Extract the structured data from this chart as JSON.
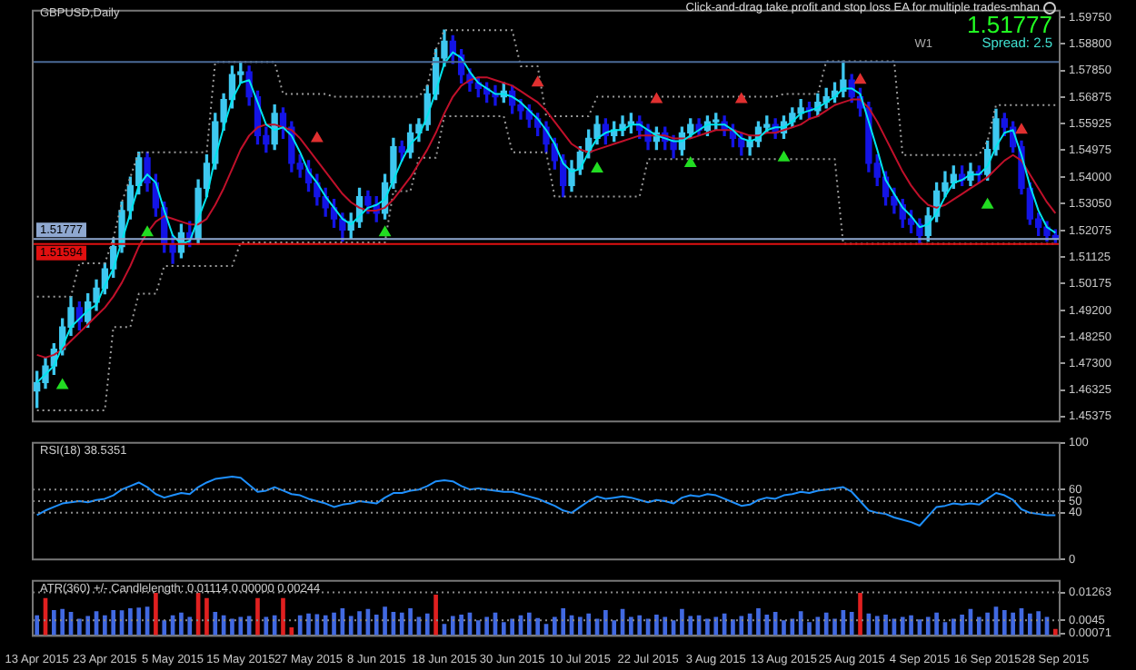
{
  "chart_data": [
    {
      "type": "candlestick",
      "title": "GBPUSD,Daily",
      "tick_labels": "y",
      "ohlc": [
        [
          1.463,
          1.47,
          1.457,
          1.466
        ],
        [
          1.466,
          1.475,
          1.464,
          1.472
        ],
        [
          1.472,
          1.48,
          1.469,
          1.478
        ],
        [
          1.478,
          1.489,
          1.476,
          1.486
        ],
        [
          1.486,
          1.497,
          1.483,
          1.493
        ],
        [
          1.493,
          1.495,
          1.485,
          1.488
        ],
        [
          1.488,
          1.498,
          1.486,
          1.495
        ],
        [
          1.495,
          1.503,
          1.492,
          1.5
        ],
        [
          1.5,
          1.509,
          1.498,
          1.507
        ],
        [
          1.507,
          1.518,
          1.504,
          1.515
        ],
        [
          1.515,
          1.531,
          1.513,
          1.528
        ],
        [
          1.528,
          1.54,
          1.525,
          1.537
        ],
        [
          1.537,
          1.549,
          1.534,
          1.547
        ],
        [
          1.547,
          1.549,
          1.535,
          1.538
        ],
        [
          1.538,
          1.541,
          1.526,
          1.529
        ],
        [
          1.529,
          1.531,
          1.513,
          1.516
        ],
        [
          1.516,
          1.519,
          1.509,
          1.513
        ],
        [
          1.513,
          1.523,
          1.511,
          1.52
        ],
        [
          1.52,
          1.524,
          1.515,
          1.518
        ],
        [
          1.518,
          1.539,
          1.516,
          1.536
        ],
        [
          1.536,
          1.548,
          1.533,
          1.545
        ],
        [
          1.545,
          1.563,
          1.543,
          1.56
        ],
        [
          1.56,
          1.57,
          1.557,
          1.568
        ],
        [
          1.568,
          1.58,
          1.565,
          1.577
        ],
        [
          1.577,
          1.5815,
          1.574,
          1.578
        ],
        [
          1.578,
          1.58,
          1.566,
          1.569
        ],
        [
          1.569,
          1.571,
          1.552,
          1.555
        ],
        [
          1.555,
          1.558,
          1.549,
          1.552
        ],
        [
          1.552,
          1.566,
          1.55,
          1.563
        ],
        [
          1.563,
          1.565,
          1.554,
          1.558
        ],
        [
          1.558,
          1.56,
          1.542,
          1.545
        ],
        [
          1.545,
          1.548,
          1.54,
          1.543
        ],
        [
          1.543,
          1.546,
          1.535,
          1.538
        ],
        [
          1.538,
          1.541,
          1.53,
          1.533
        ],
        [
          1.533,
          1.536,
          1.526,
          1.529
        ],
        [
          1.529,
          1.532,
          1.522,
          1.525
        ],
        [
          1.525,
          1.527,
          1.517,
          1.521
        ],
        [
          1.521,
          1.527,
          1.518,
          1.524
        ],
        [
          1.524,
          1.536,
          1.522,
          1.533
        ],
        [
          1.533,
          1.535,
          1.527,
          1.53
        ],
        [
          1.53,
          1.533,
          1.524,
          1.527
        ],
        [
          1.527,
          1.541,
          1.525,
          1.538
        ],
        [
          1.538,
          1.554,
          1.536,
          1.551
        ],
        [
          1.551,
          1.553,
          1.546,
          1.549
        ],
        [
          1.549,
          1.559,
          1.547,
          1.556
        ],
        [
          1.556,
          1.561,
          1.553,
          1.559
        ],
        [
          1.559,
          1.573,
          1.557,
          1.57
        ],
        [
          1.57,
          1.586,
          1.568,
          1.583
        ],
        [
          1.583,
          1.593,
          1.58,
          1.589
        ],
        [
          1.589,
          1.591,
          1.581,
          1.584
        ],
        [
          1.584,
          1.586,
          1.574,
          1.577
        ],
        [
          1.577,
          1.579,
          1.571,
          1.574
        ],
        [
          1.574,
          1.576,
          1.569,
          1.572
        ],
        [
          1.572,
          1.574,
          1.567,
          1.57
        ],
        [
          1.57,
          1.573,
          1.566,
          1.569
        ],
        [
          1.569,
          1.574,
          1.567,
          1.571
        ],
        [
          1.571,
          1.573,
          1.563,
          1.566
        ],
        [
          1.566,
          1.568,
          1.561,
          1.564
        ],
        [
          1.564,
          1.566,
          1.558,
          1.561
        ],
        [
          1.561,
          1.563,
          1.555,
          1.558
        ],
        [
          1.558,
          1.56,
          1.549,
          1.552
        ],
        [
          1.552,
          1.554,
          1.543,
          1.546
        ],
        [
          1.546,
          1.548,
          1.533,
          1.537
        ],
        [
          1.537,
          1.546,
          1.535,
          1.543
        ],
        [
          1.543,
          1.551,
          1.541,
          1.549
        ],
        [
          1.549,
          1.557,
          1.547,
          1.554
        ],
        [
          1.554,
          1.562,
          1.552,
          1.559
        ],
        [
          1.559,
          1.561,
          1.552,
          1.555
        ],
        [
          1.555,
          1.56,
          1.553,
          1.557
        ],
        [
          1.557,
          1.562,
          1.555,
          1.559
        ],
        [
          1.559,
          1.563,
          1.556,
          1.56
        ],
        [
          1.56,
          1.562,
          1.554,
          1.557
        ],
        [
          1.557,
          1.559,
          1.55,
          1.553
        ],
        [
          1.553,
          1.558,
          1.55,
          1.556
        ],
        [
          1.556,
          1.558,
          1.55,
          1.553
        ],
        [
          1.553,
          1.555,
          1.547,
          1.55
        ],
        [
          1.55,
          1.558,
          1.548,
          1.556
        ],
        [
          1.556,
          1.561,
          1.554,
          1.559
        ],
        [
          1.559,
          1.561,
          1.555,
          1.557
        ],
        [
          1.557,
          1.562,
          1.555,
          1.56
        ],
        [
          1.56,
          1.563,
          1.557,
          1.56
        ],
        [
          1.56,
          1.562,
          1.555,
          1.557
        ],
        [
          1.557,
          1.559,
          1.551,
          1.554
        ],
        [
          1.554,
          1.556,
          1.548,
          1.551
        ],
        [
          1.551,
          1.555,
          1.548,
          1.553
        ],
        [
          1.553,
          1.56,
          1.551,
          1.558
        ],
        [
          1.558,
          1.562,
          1.556,
          1.559
        ],
        [
          1.559,
          1.561,
          1.554,
          1.556
        ],
        [
          1.556,
          1.562,
          1.554,
          1.56
        ],
        [
          1.56,
          1.565,
          1.558,
          1.563
        ],
        [
          1.563,
          1.568,
          1.561,
          1.565
        ],
        [
          1.565,
          1.567,
          1.561,
          1.564
        ],
        [
          1.564,
          1.57,
          1.562,
          1.567
        ],
        [
          1.567,
          1.572,
          1.565,
          1.569
        ],
        [
          1.569,
          1.574,
          1.567,
          1.571
        ],
        [
          1.571,
          1.5818,
          1.569,
          1.575
        ],
        [
          1.575,
          1.577,
          1.567,
          1.569
        ],
        [
          1.569,
          1.572,
          1.562,
          1.565
        ],
        [
          1.565,
          1.567,
          1.542,
          1.545
        ],
        [
          1.545,
          1.548,
          1.537,
          1.54
        ],
        [
          1.54,
          1.542,
          1.53,
          1.533
        ],
        [
          1.533,
          1.536,
          1.527,
          1.53
        ],
        [
          1.53,
          1.532,
          1.522,
          1.525
        ],
        [
          1.525,
          1.528,
          1.52,
          1.523
        ],
        [
          1.523,
          1.525,
          1.516,
          1.519
        ],
        [
          1.519,
          1.529,
          1.517,
          1.526
        ],
        [
          1.526,
          1.538,
          1.524,
          1.535
        ],
        [
          1.535,
          1.542,
          1.533,
          1.538
        ],
        [
          1.538,
          1.544,
          1.536,
          1.541
        ],
        [
          1.541,
          1.544,
          1.537,
          1.539
        ],
        [
          1.539,
          1.545,
          1.537,
          1.542
        ],
        [
          1.542,
          1.544,
          1.538,
          1.541
        ],
        [
          1.541,
          1.553,
          1.539,
          1.55
        ],
        [
          1.55,
          1.5645,
          1.548,
          1.561
        ],
        [
          1.561,
          1.563,
          1.555,
          1.558
        ],
        [
          1.558,
          1.56,
          1.549,
          1.551
        ],
        [
          1.551,
          1.553,
          1.534,
          1.536
        ],
        [
          1.536,
          1.538,
          1.523,
          1.525
        ],
        [
          1.525,
          1.527,
          1.519,
          1.522
        ],
        [
          1.522,
          1.524,
          1.517,
          1.519
        ],
        [
          1.519,
          1.521,
          1.5165,
          1.5178
        ]
      ],
      "colors": [
        "#3ec8f0",
        "#3ec8f0",
        "#3ec8f0",
        "#3ec8f0",
        "#3ec8f0",
        "#1414e6",
        "#3ec8f0",
        "#3ec8f0",
        "#3ec8f0",
        "#3ec8f0",
        "#3ec8f0",
        "#3ec8f0",
        "#3ec8f0",
        "#1414e6",
        "#1414e6",
        "#1414e6",
        "#1414e6",
        "#3ec8f0",
        "#1414e6",
        "#3ec8f0",
        "#3ec8f0",
        "#3ec8f0",
        "#3ec8f0",
        "#3ec8f0",
        "#3ec8f0",
        "#1414e6",
        "#1414e6",
        "#1414e6",
        "#3ec8f0",
        "#1414e6",
        "#1414e6",
        "#1414e6",
        "#1414e6",
        "#1414e6",
        "#1414e6",
        "#1414e6",
        "#1414e6",
        "#3ec8f0",
        "#3ec8f0",
        "#1414e6",
        "#1414e6",
        "#3ec8f0",
        "#3ec8f0",
        "#1414e6",
        "#3ec8f0",
        "#3ec8f0",
        "#3ec8f0",
        "#3ec8f0",
        "#3ec8f0",
        "#1414e6",
        "#1414e6",
        "#1414e6",
        "#1414e6",
        "#1414e6",
        "#1414e6",
        "#3ec8f0",
        "#1414e6",
        "#1414e6",
        "#1414e6",
        "#1414e6",
        "#1414e6",
        "#1414e6",
        "#1414e6",
        "#3ec8f0",
        "#3ec8f0",
        "#3ec8f0",
        "#3ec8f0",
        "#1414e6",
        "#3ec8f0",
        "#3ec8f0",
        "#3ec8f0",
        "#1414e6",
        "#1414e6",
        "#3ec8f0",
        "#1414e6",
        "#1414e6",
        "#3ec8f0",
        "#3ec8f0",
        "#1414e6",
        "#3ec8f0",
        "#3ec8f0",
        "#1414e6",
        "#1414e6",
        "#1414e6",
        "#3ec8f0",
        "#3ec8f0",
        "#3ec8f0",
        "#1414e6",
        "#3ec8f0",
        "#3ec8f0",
        "#3ec8f0",
        "#1414e6",
        "#3ec8f0",
        "#3ec8f0",
        "#3ec8f0",
        "#3ec8f0",
        "#1414e6",
        "#1414e6",
        "#1414e6",
        "#1414e6",
        "#1414e6",
        "#1414e6",
        "#1414e6",
        "#1414e6",
        "#1414e6",
        "#3ec8f0",
        "#3ec8f0",
        "#3ec8f0",
        "#3ec8f0",
        "#1414e6",
        "#3ec8f0",
        "#1414e6",
        "#3ec8f0",
        "#3ec8f0",
        "#1414e6",
        "#1414e6",
        "#1414e6",
        "#1414e6",
        "#1414e6",
        "#1414e6",
        "#1414e6"
      ],
      "series": [
        {
          "type": "line",
          "color": "#00e5ee",
          "values": [
            1.466,
            1.469,
            1.472,
            1.479,
            1.486,
            1.489,
            1.492,
            1.494,
            1.501,
            1.507,
            1.517,
            1.527,
            1.537,
            1.541,
            1.538,
            1.528,
            1.519,
            1.516,
            1.517,
            1.525,
            1.533,
            1.547,
            1.558,
            1.568,
            1.574,
            1.575,
            1.567,
            1.559,
            1.557,
            1.558,
            1.555,
            1.549,
            1.542,
            1.538,
            1.533,
            1.529,
            1.525,
            1.523,
            1.526,
            1.529,
            1.53,
            1.532,
            1.539,
            1.546,
            1.552,
            1.555,
            1.562,
            1.571,
            1.581,
            1.585,
            1.583,
            1.578,
            1.574,
            1.572,
            1.57,
            1.57,
            1.569,
            1.567,
            1.564,
            1.561,
            1.557,
            1.552,
            1.545,
            1.542,
            1.543,
            1.549,
            1.554,
            1.556,
            1.557,
            1.557,
            1.559,
            1.559,
            1.557,
            1.555,
            1.554,
            1.553,
            1.553,
            1.555,
            1.557,
            1.559,
            1.559,
            1.559,
            1.557,
            1.554,
            1.553,
            1.554,
            1.557,
            1.558,
            1.558,
            1.56,
            1.563,
            1.564,
            1.565,
            1.567,
            1.569,
            1.572,
            1.572,
            1.57,
            1.56,
            1.55,
            1.539,
            1.534,
            1.529,
            1.526,
            1.522,
            1.523,
            1.527,
            1.533,
            1.538,
            1.539,
            1.541,
            1.541,
            1.544,
            1.551,
            1.556,
            1.557,
            1.548,
            1.537,
            1.528,
            1.522,
            1.52
          ]
        },
        {
          "type": "line",
          "color": "#c0102a",
          "values": [
            1.476,
            1.475,
            1.476,
            1.478,
            1.481,
            1.484,
            1.487,
            1.49,
            1.493,
            1.497,
            1.502,
            1.508,
            1.515,
            1.52,
            1.524,
            1.526,
            1.525,
            1.524,
            1.523,
            1.523,
            1.525,
            1.53,
            1.536,
            1.543,
            1.55,
            1.555,
            1.558,
            1.559,
            1.559,
            1.558,
            1.557,
            1.554,
            1.55,
            1.546,
            1.542,
            1.538,
            1.534,
            1.531,
            1.529,
            1.528,
            1.528,
            1.529,
            1.532,
            1.536,
            1.54,
            1.545,
            1.55,
            1.556,
            1.563,
            1.569,
            1.573,
            1.575,
            1.576,
            1.576,
            1.575,
            1.574,
            1.573,
            1.571,
            1.569,
            1.567,
            1.564,
            1.56,
            1.556,
            1.552,
            1.55,
            1.549,
            1.55,
            1.551,
            1.552,
            1.553,
            1.554,
            1.555,
            1.555,
            1.555,
            1.555,
            1.554,
            1.554,
            1.554,
            1.555,
            1.556,
            1.557,
            1.557,
            1.557,
            1.556,
            1.555,
            1.555,
            1.556,
            1.556,
            1.557,
            1.558,
            1.559,
            1.561,
            1.562,
            1.564,
            1.566,
            1.567,
            1.568,
            1.568,
            1.565,
            1.56,
            1.554,
            1.548,
            1.542,
            1.537,
            1.533,
            1.53,
            1.529,
            1.53,
            1.532,
            1.534,
            1.536,
            1.538,
            1.54,
            1.543,
            1.546,
            1.548,
            1.546,
            1.541,
            1.536,
            1.531,
            1.527
          ]
        },
        {
          "type": "line",
          "color": "#9a9a9a",
          "line_style": "dotted",
          "values": [
            1.497,
            1.497,
            1.497,
            1.497,
            1.497,
            1.509,
            1.509,
            1.509,
            1.509,
            1.518,
            1.531,
            1.54,
            1.549,
            1.549,
            1.549,
            1.549,
            1.549,
            1.549,
            1.549,
            1.549,
            1.549,
            1.5815,
            1.5815,
            1.5815,
            1.5815,
            1.5815,
            1.5815,
            1.5815,
            1.5815,
            1.57,
            1.57,
            1.57,
            1.57,
            1.57,
            1.57,
            1.569,
            1.569,
            1.569,
            1.569,
            1.569,
            1.569,
            1.569,
            1.569,
            1.569,
            1.569,
            1.569,
            1.573,
            1.586,
            1.593,
            1.593,
            1.593,
            1.593,
            1.593,
            1.593,
            1.593,
            1.593,
            1.593,
            1.58,
            1.58,
            1.58,
            1.562,
            1.562,
            1.562,
            1.562,
            1.562,
            1.562,
            1.569,
            1.569,
            1.569,
            1.569,
            1.569,
            1.569,
            1.569,
            1.569,
            1.569,
            1.569,
            1.569,
            1.569,
            1.569,
            1.569,
            1.569,
            1.569,
            1.569,
            1.569,
            1.569,
            1.569,
            1.569,
            1.569,
            1.57,
            1.57,
            1.57,
            1.57,
            1.57,
            1.5818,
            1.5818,
            1.5818,
            1.5818,
            1.5818,
            1.5818,
            1.5818,
            1.5818,
            1.5818,
            1.548,
            1.548,
            1.548,
            1.548,
            1.548,
            1.548,
            1.548,
            1.548,
            1.548,
            1.548,
            1.553,
            1.566,
            1.566,
            1.566,
            1.566,
            1.566,
            1.566,
            1.566,
            1.566
          ]
        },
        {
          "type": "line",
          "color": "#9a9a9a",
          "line_style": "dotted",
          "values": [
            1.456,
            1.456,
            1.456,
            1.456,
            1.456,
            1.456,
            1.456,
            1.456,
            1.456,
            1.486,
            1.486,
            1.486,
            1.498,
            1.498,
            1.498,
            1.508,
            1.508,
            1.508,
            1.508,
            1.508,
            1.508,
            1.508,
            1.508,
            1.508,
            1.5165,
            1.5165,
            1.5165,
            1.5165,
            1.5165,
            1.5165,
            1.5165,
            1.5165,
            1.5165,
            1.5165,
            1.5165,
            1.5165,
            1.5165,
            1.5165,
            1.5165,
            1.5165,
            1.5165,
            1.5165,
            1.535,
            1.535,
            1.535,
            1.547,
            1.547,
            1.547,
            1.562,
            1.562,
            1.562,
            1.562,
            1.562,
            1.562,
            1.562,
            1.562,
            1.549,
            1.549,
            1.549,
            1.549,
            1.549,
            1.533,
            1.533,
            1.533,
            1.533,
            1.533,
            1.533,
            1.533,
            1.533,
            1.533,
            1.533,
            1.533,
            1.5465,
            1.5465,
            1.5465,
            1.5465,
            1.5465,
            1.5465,
            1.5465,
            1.5465,
            1.5465,
            1.5465,
            1.5465,
            1.5465,
            1.5465,
            1.5465,
            1.5465,
            1.5465,
            1.5465,
            1.5465,
            1.5465,
            1.5465,
            1.5465,
            1.5465,
            1.5465,
            1.516,
            1.516,
            1.516,
            1.516,
            1.516,
            1.516,
            1.516,
            1.516,
            1.516,
            1.516,
            1.516,
            1.516,
            1.516,
            1.516,
            1.516,
            1.516,
            1.516,
            1.516,
            1.516,
            1.516,
            1.516,
            1.516,
            1.516,
            1.516,
            1.516,
            1.516
          ]
        },
        {
          "type": "scatter",
          "color": "#22dd22",
          "marker": "triangle",
          "values": [
            null,
            null,
            null,
            1.465,
            null,
            null,
            null,
            null,
            null,
            null,
            null,
            null,
            null,
            1.52,
            null,
            null,
            null,
            null,
            null,
            null,
            null,
            null,
            null,
            null,
            null,
            null,
            null,
            null,
            null,
            null,
            null,
            null,
            null,
            null,
            null,
            null,
            null,
            null,
            null,
            null,
            null,
            1.52,
            null,
            null,
            null,
            null,
            null,
            null,
            null,
            null,
            null,
            null,
            null,
            null,
            null,
            null,
            null,
            null,
            null,
            null,
            null,
            null,
            null,
            null,
            null,
            null,
            1.543,
            null,
            null,
            null,
            null,
            null,
            null,
            null,
            null,
            null,
            null,
            1.545,
            null,
            null,
            null,
            null,
            null,
            null,
            null,
            null,
            null,
            null,
            1.547,
            null,
            null,
            null,
            null,
            null,
            null,
            null,
            null,
            null,
            null,
            null,
            null,
            null,
            null,
            null,
            null,
            null,
            null,
            null,
            null,
            null,
            null,
            null,
            1.53,
            null,
            null,
            null,
            null,
            null,
            null,
            null,
            null
          ]
        },
        {
          "type": "scatter",
          "color": "#e03030",
          "marker": "triangle",
          "values": [
            null,
            null,
            null,
            null,
            null,
            null,
            null,
            null,
            null,
            null,
            null,
            null,
            null,
            null,
            null,
            null,
            null,
            null,
            null,
            null,
            null,
            null,
            null,
            null,
            null,
            null,
            null,
            null,
            null,
            null,
            null,
            null,
            null,
            1.554,
            null,
            null,
            null,
            null,
            null,
            null,
            null,
            null,
            null,
            null,
            null,
            null,
            null,
            null,
            null,
            null,
            null,
            null,
            null,
            null,
            null,
            null,
            null,
            null,
            null,
            1.574,
            null,
            null,
            null,
            null,
            null,
            null,
            null,
            null,
            null,
            null,
            null,
            null,
            null,
            1.568,
            null,
            null,
            null,
            null,
            null,
            null,
            null,
            null,
            null,
            1.568,
            null,
            null,
            null,
            null,
            null,
            null,
            null,
            null,
            null,
            null,
            null,
            null,
            null,
            1.575,
            null,
            null,
            null,
            null,
            null,
            null,
            null,
            null,
            null,
            null,
            null,
            null,
            null,
            null,
            null,
            null,
            null,
            null,
            1.557,
            null,
            null,
            null,
            null
          ]
        }
      ],
      "ylim": [
        1.452,
        1.6
      ],
      "yticks": [
        {
          "value": 1.5975,
          "label": "1.59750"
        },
        {
          "value": 1.588,
          "label": "1.58800"
        },
        {
          "value": 1.5785,
          "label": "1.57850"
        },
        {
          "value": 1.56875,
          "label": "1.56875"
        },
        {
          "value": 1.55925,
          "label": "1.55925"
        },
        {
          "value": 1.54975,
          "label": "1.54975"
        },
        {
          "value": 1.54,
          "label": "1.54000"
        },
        {
          "value": 1.5305,
          "label": "1.53050"
        },
        {
          "value": 1.52075,
          "label": "1.52075"
        },
        {
          "value": 1.51125,
          "label": "1.51125"
        },
        {
          "value": 1.50175,
          "label": "1.50175"
        },
        {
          "value": 1.492,
          "label": "1.49200"
        },
        {
          "value": 1.4825,
          "label": "1.48250"
        },
        {
          "value": 1.473,
          "label": "1.47300"
        },
        {
          "value": 1.46325,
          "label": "1.46325"
        },
        {
          "value": 1.45375,
          "label": "1.45375"
        }
      ],
      "ref_lines": [
        {
          "axis": "y",
          "value": 1.5815,
          "color": "#4a6a96"
        },
        {
          "axis": "y",
          "value": 1.51777,
          "label": "1.51777",
          "color": "#8fa8d0"
        },
        {
          "axis": "y",
          "value": 1.51594,
          "label": "1.51594",
          "color": "#e01010"
        }
      ],
      "annotations": [
        "Click-and-drag take profit and stop loss EA for multiple trades-mhan",
        "1.51777",
        "Spread: 2.5",
        "W1"
      ]
    },
    {
      "type": "line",
      "title": "RSI(18) 38.5351",
      "tick_labels": "y",
      "color": "#1e90ff",
      "values": [
        38,
        42,
        45,
        48,
        49,
        50,
        49,
        51,
        52,
        55,
        60,
        63,
        66,
        62,
        56,
        53,
        55,
        57,
        56,
        62,
        66,
        69,
        70,
        71,
        70,
        64,
        58,
        59,
        62,
        59,
        56,
        55,
        52,
        50,
        48,
        45,
        47,
        48,
        50,
        49,
        48,
        53,
        57,
        57,
        59,
        60,
        63,
        67,
        68,
        67,
        63,
        60,
        61,
        60,
        59,
        58,
        58,
        56,
        54,
        52,
        49,
        46,
        42,
        40,
        45,
        50,
        54,
        52,
        53,
        54,
        53,
        51,
        49,
        51,
        50,
        48,
        53,
        55,
        54,
        56,
        55,
        52,
        49,
        46,
        47,
        51,
        53,
        52,
        55,
        56,
        58,
        57,
        59,
        60,
        61,
        62,
        58,
        50,
        42,
        40,
        39,
        36,
        34,
        32,
        29,
        37,
        45,
        46,
        48,
        47,
        48,
        47,
        52,
        57,
        55,
        51,
        43,
        40,
        39,
        38,
        38
      ],
      "ylim": [
        0,
        100
      ],
      "yticks": [
        0,
        40,
        50,
        60,
        100
      ],
      "ref_lines": [
        {
          "axis": "y",
          "value": 60,
          "color": "#8a8a8a",
          "line_style": "dotted"
        },
        {
          "axis": "y",
          "value": 50,
          "color": "#8a8a8a",
          "line_style": "dotted"
        },
        {
          "axis": "y",
          "value": 40,
          "color": "#8a8a8a",
          "line_style": "dotted"
        }
      ]
    },
    {
      "type": "bar",
      "title": "ATR(360) +/- Candlelength: 0.01114 0.00000 0.00244",
      "categories": [
        "13 Apr 2015",
        null,
        null,
        null,
        null,
        null,
        null,
        null,
        "23 Apr 2015",
        null,
        null,
        null,
        null,
        null,
        null,
        null,
        "5 May 2015",
        null,
        null,
        null,
        null,
        null,
        null,
        null,
        "15 May 2015",
        null,
        null,
        null,
        null,
        null,
        null,
        null,
        "27 May 2015",
        null,
        null,
        null,
        null,
        null,
        null,
        null,
        "8 Jun 2015",
        null,
        null,
        null,
        null,
        null,
        null,
        null,
        "18 Jun 2015",
        null,
        null,
        null,
        null,
        null,
        null,
        null,
        "30 Jun 2015",
        null,
        null,
        null,
        null,
        null,
        null,
        null,
        "10 Jul 2015",
        null,
        null,
        null,
        null,
        null,
        null,
        null,
        "22 Jul 2015",
        null,
        null,
        null,
        null,
        null,
        null,
        null,
        "3 Aug 2015",
        null,
        null,
        null,
        null,
        null,
        null,
        null,
        "13 Aug 2015",
        null,
        null,
        null,
        null,
        null,
        null,
        null,
        "25 Aug 2015",
        null,
        null,
        null,
        null,
        null,
        null,
        null,
        "4 Sep 2015",
        null,
        null,
        null,
        null,
        null,
        null,
        null,
        "16 Sep 2015",
        null,
        null,
        null,
        null,
        null,
        null,
        null,
        "28 Sep 2015"
      ],
      "values": [
        0.006,
        0.011,
        0.0075,
        0.0078,
        0.007,
        0.005,
        0.0058,
        0.0072,
        0.006,
        0.0075,
        0.0074,
        0.008,
        0.0082,
        0.0085,
        0.0125,
        0.0045,
        0.006,
        0.0068,
        0.0055,
        0.0125,
        0.011,
        0.007,
        0.006,
        0.005,
        0.0055,
        0.0058,
        0.011,
        0.0055,
        0.006,
        0.011,
        0.0025,
        0.006,
        0.0065,
        0.0063,
        0.006,
        0.0068,
        0.008,
        0.0058,
        0.0072,
        0.0078,
        0.0062,
        0.0085,
        0.007,
        0.0068,
        0.008,
        0.0055,
        0.0065,
        0.012,
        0.0035,
        0.0058,
        0.0062,
        0.0068,
        0.0045,
        0.0055,
        0.0068,
        0.004,
        0.005,
        0.006,
        0.0068,
        0.0052,
        0.0035,
        0.0055,
        0.008,
        0.006,
        0.0055,
        0.0065,
        0.005,
        0.0075,
        0.0045,
        0.0078,
        0.0055,
        0.006,
        0.005,
        0.0062,
        0.0055,
        0.0045,
        0.0078,
        0.0058,
        0.006,
        0.005,
        0.0055,
        0.0065,
        0.0048,
        0.0058,
        0.0065,
        0.008,
        0.0062,
        0.007,
        0.0045,
        0.005,
        0.0072,
        0.004,
        0.0055,
        0.0068,
        0.005,
        0.0075,
        0.007,
        0.0125,
        0.0065,
        0.0058,
        0.0062,
        0.005,
        0.0055,
        0.006,
        0.0048,
        0.0055,
        0.0068,
        0.004,
        0.005,
        0.0062,
        0.0078,
        0.0055,
        0.0068,
        0.0085,
        0.0075,
        0.0068,
        0.008,
        0.0065,
        0.0072,
        0.0055,
        0.002
      ],
      "colors": [
        "#4169e1",
        "#e02020",
        "#4169e1",
        "#4169e1",
        "#4169e1",
        "#4169e1",
        "#4169e1",
        "#4169e1",
        "#4169e1",
        "#4169e1",
        "#4169e1",
        "#4169e1",
        "#4169e1",
        "#4169e1",
        "#e02020",
        "#4169e1",
        "#4169e1",
        "#4169e1",
        "#4169e1",
        "#e02020",
        "#e02020",
        "#4169e1",
        "#4169e1",
        "#4169e1",
        "#4169e1",
        "#4169e1",
        "#e02020",
        "#4169e1",
        "#4169e1",
        "#e02020",
        "#e02020",
        "#4169e1",
        "#4169e1",
        "#4169e1",
        "#4169e1",
        "#4169e1",
        "#4169e1",
        "#4169e1",
        "#4169e1",
        "#4169e1",
        "#4169e1",
        "#4169e1",
        "#4169e1",
        "#4169e1",
        "#4169e1",
        "#4169e1",
        "#4169e1",
        "#e02020",
        "#4169e1",
        "#4169e1",
        "#4169e1",
        "#4169e1",
        "#4169e1",
        "#4169e1",
        "#4169e1",
        "#4169e1",
        "#4169e1",
        "#4169e1",
        "#4169e1",
        "#4169e1",
        "#4169e1",
        "#4169e1",
        "#4169e1",
        "#4169e1",
        "#4169e1",
        "#4169e1",
        "#4169e1",
        "#4169e1",
        "#4169e1",
        "#4169e1",
        "#4169e1",
        "#4169e1",
        "#4169e1",
        "#4169e1",
        "#4169e1",
        "#4169e1",
        "#4169e1",
        "#4169e1",
        "#4169e1",
        "#4169e1",
        "#4169e1",
        "#4169e1",
        "#4169e1",
        "#4169e1",
        "#4169e1",
        "#4169e1",
        "#4169e1",
        "#4169e1",
        "#4169e1",
        "#4169e1",
        "#4169e1",
        "#4169e1",
        "#4169e1",
        "#4169e1",
        "#4169e1",
        "#4169e1",
        "#4169e1",
        "#e02020",
        "#4169e1",
        "#4169e1",
        "#4169e1",
        "#4169e1",
        "#4169e1",
        "#4169e1",
        "#4169e1",
        "#4169e1",
        "#4169e1",
        "#4169e1",
        "#4169e1",
        "#4169e1",
        "#4169e1",
        "#4169e1",
        "#4169e1",
        "#4169e1",
        "#4169e1",
        "#4169e1",
        "#4169e1",
        "#4169e1",
        "#4169e1",
        "#4169e1",
        "#e02020"
      ],
      "ylim": [
        0,
        0.016
      ],
      "yticks": [
        0.01263,
        0.0045,
        0.00071
      ],
      "ref_lines": [
        {
          "axis": "y",
          "value": 0.01263,
          "color": "#8a8a8a",
          "line_style": "dotted"
        },
        {
          "axis": "y",
          "value": 0.0045,
          "color": "#8a8a8a",
          "line_style": "dotted"
        }
      ]
    }
  ]
}
